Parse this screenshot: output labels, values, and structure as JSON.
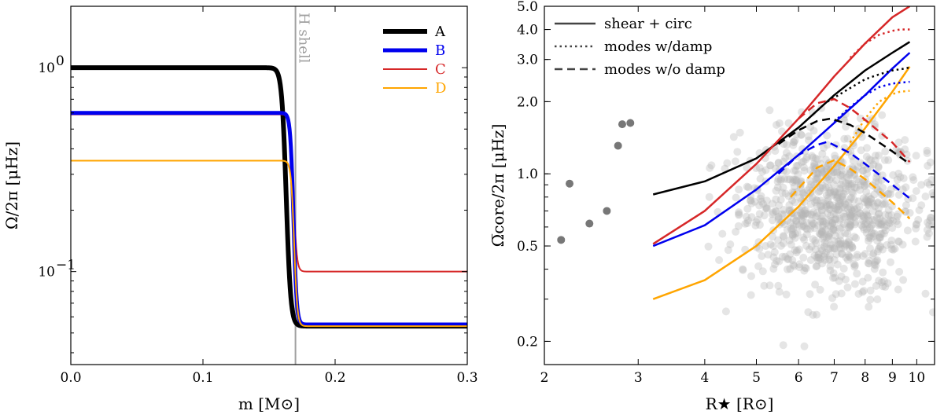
{
  "chart_data": [
    {
      "type": "line",
      "xlabel": "m [M⊙]",
      "ylabel": "Ω/2π [μHz]",
      "xlim": [
        0.0,
        0.3
      ],
      "ylim": [
        0.035,
        2.0
      ],
      "yscale": "log",
      "xticks": [
        {
          "v": 0.0,
          "label": "0.0"
        },
        {
          "v": 0.1,
          "label": "0.1"
        },
        {
          "v": 0.2,
          "label": "0.2"
        },
        {
          "v": 0.3,
          "label": "0.3"
        }
      ],
      "yticks": [
        {
          "v": 1.0,
          "label": "10",
          "exp": "0"
        },
        {
          "v": 0.1,
          "label": "10",
          "exp": "−1"
        }
      ],
      "vline": {
        "x": 0.17,
        "label": "H shell",
        "color": "#a0a0a0"
      },
      "legend": {
        "placement": "top-right"
      },
      "series": [
        {
          "name": "A",
          "color": "#000000",
          "width": 6,
          "core": 1.0,
          "env": 0.054,
          "x0": 0.163,
          "w": 0.0017
        },
        {
          "name": "B",
          "color": "#0000ee",
          "width": 5,
          "core": 0.6,
          "env": 0.055,
          "x0": 0.1685,
          "w": 0.0012
        },
        {
          "name": "C",
          "color": "#d62728",
          "width": 2,
          "core": 0.59,
          "env": 0.1,
          "x0": 0.1685,
          "w": 0.0012
        },
        {
          "name": "D",
          "color": "#ffa500",
          "width": 2,
          "core": 0.35,
          "env": 0.054,
          "x0": 0.169,
          "w": 0.0012
        }
      ]
    },
    {
      "type": "scatter",
      "xlabel": "R★ [R⊙]",
      "ylabel": "Ω̅core/2π [μHz]",
      "xlim": [
        2.0,
        10.8
      ],
      "ylim": [
        0.16,
        5.0
      ],
      "xscale": "log",
      "yscale": "log",
      "xticks": [
        {
          "v": 2,
          "label": "2"
        },
        {
          "v": 3,
          "label": "3"
        },
        {
          "v": 4,
          "label": "4"
        },
        {
          "v": 5,
          "label": "5"
        },
        {
          "v": 6,
          "label": "6"
        },
        {
          "v": 7,
          "label": "7"
        },
        {
          "v": 8,
          "label": "8"
        },
        {
          "v": 9,
          "label": "9"
        },
        {
          "v": 10,
          "label": "10"
        }
      ],
      "yticks": [
        {
          "v": 0.2,
          "label": "0.2"
        },
        {
          "v": 0.5,
          "label": "0.5"
        },
        {
          "v": 1.0,
          "label": "1.0"
        },
        {
          "v": 2.0,
          "label": "2.0"
        },
        {
          "v": 3.0,
          "label": "3.0"
        },
        {
          "v": 4.0,
          "label": "4.0"
        },
        {
          "v": 5.0,
          "label": "5.0"
        }
      ],
      "legend": {
        "placement": "top-left",
        "entries": [
          {
            "label": "shear + circ",
            "style": "solid"
          },
          {
            "label": "modes w/damp",
            "style": "dotted"
          },
          {
            "label": "modes w/o damp",
            "style": "dashed"
          }
        ]
      },
      "curves": [
        {
          "name": "A",
          "style": "solid",
          "color": "#000000",
          "x": [
            3.2,
            4.0,
            5.0,
            6.0,
            7.0,
            8.0,
            9.0,
            9.7
          ],
          "y": [
            0.82,
            0.93,
            1.16,
            1.56,
            2.13,
            2.7,
            3.2,
            3.55
          ]
        },
        {
          "name": "B",
          "style": "solid",
          "color": "#0000ee",
          "x": [
            3.2,
            4.0,
            5.0,
            6.0,
            7.0,
            8.0,
            9.0,
            9.7
          ],
          "y": [
            0.5,
            0.61,
            0.86,
            1.2,
            1.63,
            2.13,
            2.75,
            3.2
          ]
        },
        {
          "name": "C",
          "style": "solid",
          "color": "#d62728",
          "x": [
            3.2,
            4.0,
            5.0,
            6.0,
            7.0,
            8.0,
            9.0,
            9.7
          ],
          "y": [
            0.51,
            0.7,
            1.1,
            1.7,
            2.55,
            3.5,
            4.5,
            5.0
          ]
        },
        {
          "name": "D",
          "style": "solid",
          "color": "#ffa500",
          "x": [
            3.2,
            4.0,
            5.0,
            6.0,
            7.0,
            8.0,
            9.0,
            9.7
          ],
          "y": [
            0.3,
            0.36,
            0.5,
            0.73,
            1.08,
            1.55,
            2.2,
            2.8
          ]
        },
        {
          "name": "A",
          "style": "dotted",
          "color": "#000000",
          "x": [
            6.8,
            7.5,
            8.0,
            8.5,
            9.0,
            9.5,
            9.7
          ],
          "y": [
            2.0,
            2.28,
            2.48,
            2.6,
            2.7,
            2.75,
            2.78
          ]
        },
        {
          "name": "B",
          "style": "dotted",
          "color": "#0000ee",
          "x": [
            7.0,
            7.5,
            8.0,
            8.5,
            9.0,
            9.3,
            9.7
          ],
          "y": [
            1.65,
            1.9,
            2.13,
            2.3,
            2.38,
            2.4,
            2.42
          ]
        },
        {
          "name": "C",
          "style": "dotted",
          "color": "#d62728",
          "x": [
            7.5,
            8.0,
            8.5,
            9.0,
            9.3,
            9.7
          ],
          "y": [
            3.05,
            3.5,
            3.8,
            3.95,
            4.0,
            4.0
          ]
        },
        {
          "name": "D",
          "style": "dotted",
          "color": "#ffa500",
          "x": [
            7.5,
            8.0,
            8.5,
            9.0,
            9.3,
            9.7
          ],
          "y": [
            1.35,
            1.7,
            2.0,
            2.15,
            2.2,
            2.22
          ]
        },
        {
          "name": "A",
          "style": "dashed",
          "color": "#000000",
          "x": [
            5.5,
            6.0,
            6.5,
            6.9,
            7.5,
            8.0,
            9.0,
            9.7
          ],
          "y": [
            1.33,
            1.52,
            1.66,
            1.7,
            1.6,
            1.48,
            1.24,
            1.1
          ]
        },
        {
          "name": "B",
          "style": "dashed",
          "color": "#0000ee",
          "x": [
            5.5,
            6.0,
            6.5,
            6.8,
            7.5,
            8.0,
            9.0,
            9.7
          ],
          "y": [
            1.0,
            1.2,
            1.32,
            1.36,
            1.22,
            1.1,
            0.9,
            0.79
          ]
        },
        {
          "name": "C",
          "style": "dashed",
          "color": "#d62728",
          "x": [
            6.0,
            6.5,
            7.0,
            7.5,
            8.0,
            9.0,
            9.7
          ],
          "y": [
            1.7,
            1.97,
            2.05,
            1.88,
            1.68,
            1.35,
            1.12
          ]
        },
        {
          "name": "D",
          "style": "dashed",
          "color": "#ffa500",
          "x": [
            5.8,
            6.5,
            7.0,
            7.5,
            8.0,
            9.0,
            9.7
          ],
          "y": [
            0.8,
            1.06,
            1.14,
            1.05,
            0.95,
            0.76,
            0.65
          ]
        }
      ],
      "dark_points": [
        {
          "x": 2.15,
          "y": 0.53
        },
        {
          "x": 2.23,
          "y": 0.91
        },
        {
          "x": 2.43,
          "y": 0.62
        },
        {
          "x": 2.62,
          "y": 0.7
        },
        {
          "x": 2.75,
          "y": 1.31
        },
        {
          "x": 2.8,
          "y": 1.61
        },
        {
          "x": 2.9,
          "y": 1.63
        }
      ],
      "grey_cloud": {
        "count": 900,
        "x_range": [
          3.9,
          10.8
        ],
        "y_range": [
          0.17,
          1.9
        ],
        "center": [
          6.9,
          0.7
        ],
        "color": "#b4b4b4",
        "opacity": 0.35
      }
    }
  ]
}
